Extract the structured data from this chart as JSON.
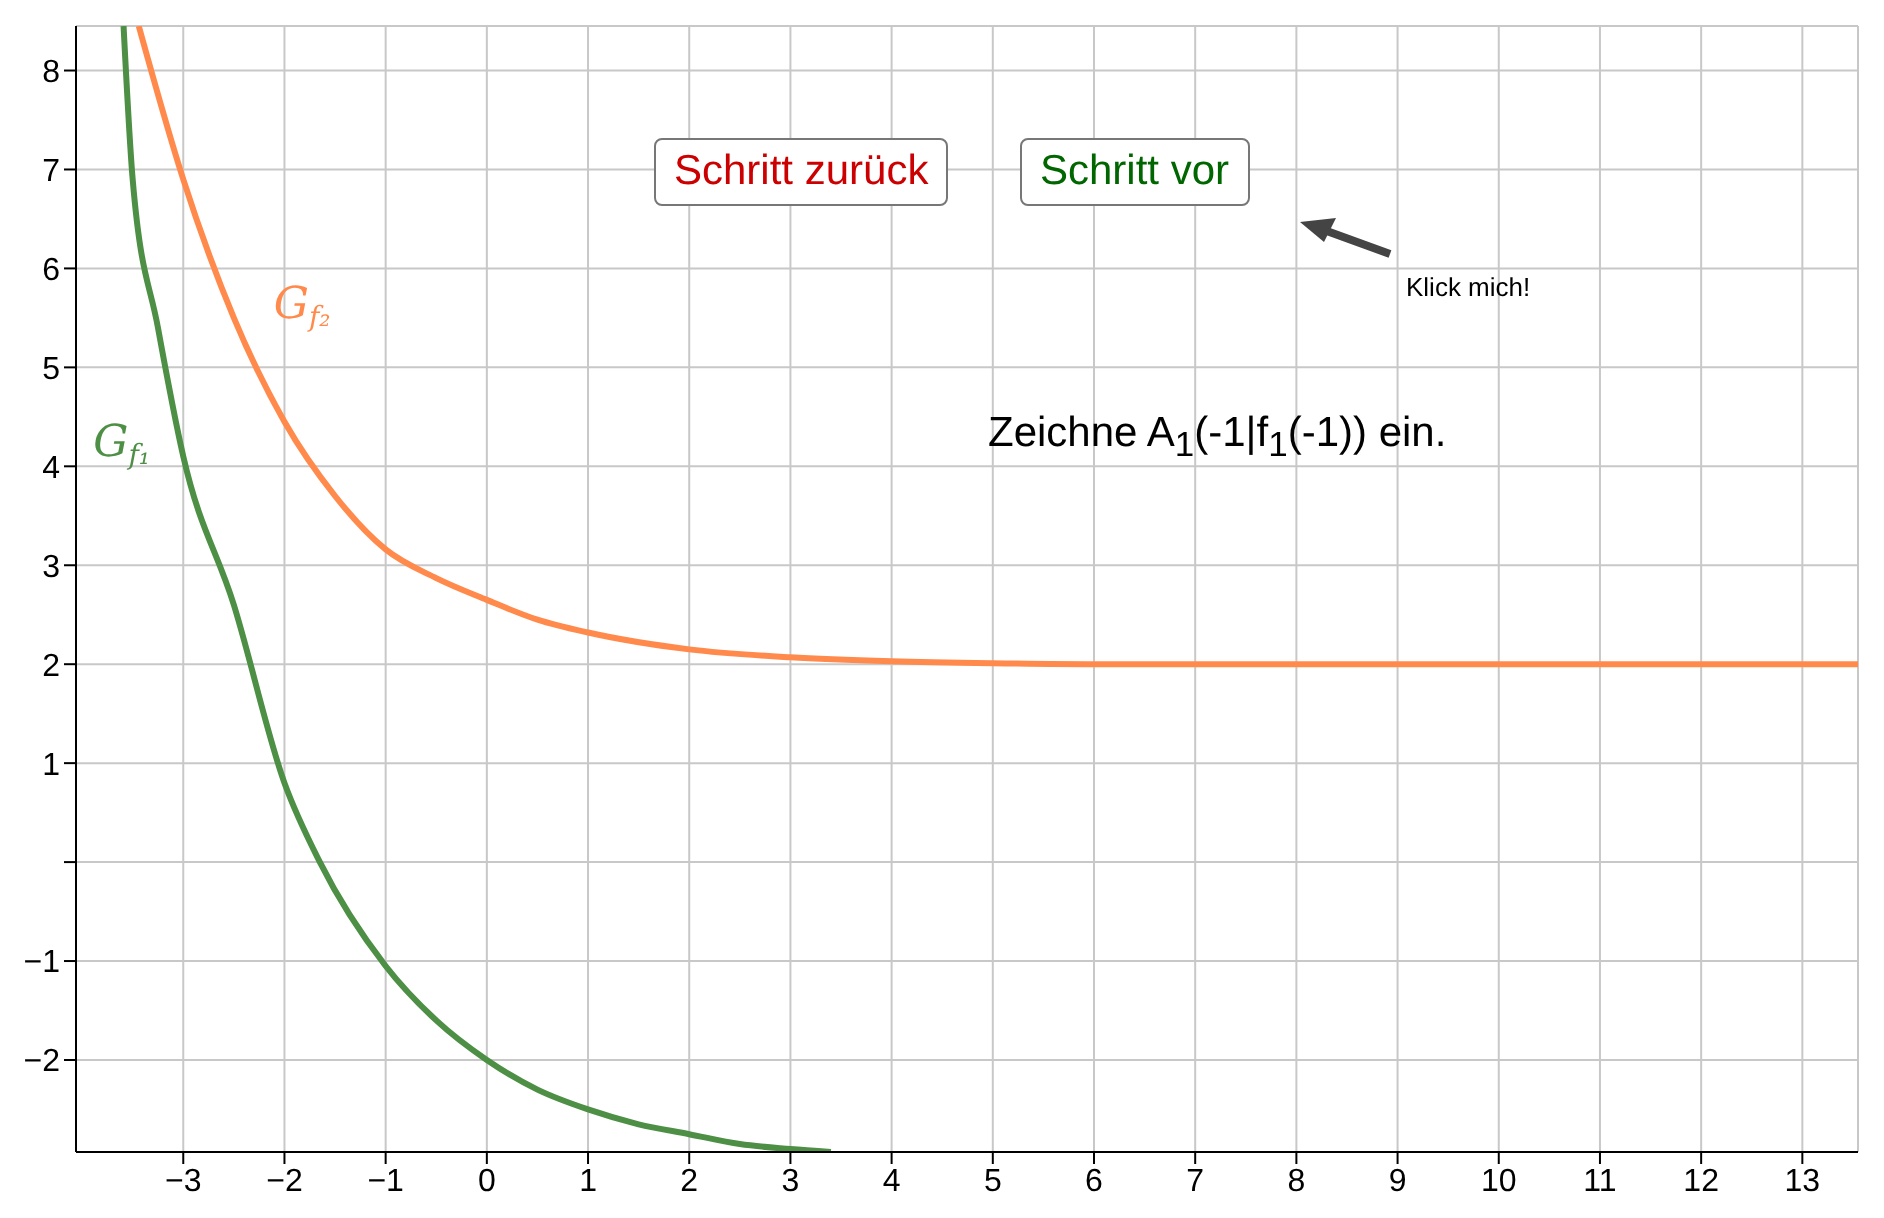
{
  "chart_data": {
    "type": "line",
    "xlim": [
      -4.06,
      13.55
    ],
    "ylim": [
      -2.93,
      8.45
    ],
    "xticks": [
      -3,
      -2,
      -1,
      0,
      1,
      2,
      3,
      4,
      5,
      6,
      7,
      8,
      9,
      10,
      11,
      12,
      13
    ],
    "yticks": [
      -2,
      -1,
      {
        "value": 0,
        "label": null
      },
      1,
      2,
      3,
      4,
      5,
      6,
      7,
      8
    ],
    "grid": true,
    "legend": false,
    "marker": "none",
    "line_style": "solid",
    "series": [
      {
        "name": "G$_{f₂}$",
        "color": "#ff8a4c",
        "x": [
          -3.44,
          -3,
          -2.5,
          -2,
          -1.5,
          -1,
          -0.5,
          0,
          0.5,
          1,
          2,
          3,
          4,
          5,
          6,
          8,
          10,
          13.55
        ],
        "values": [
          8.45,
          6.9,
          5.5,
          4.45,
          3.7,
          3.16,
          2.87,
          2.65,
          2.45,
          2.32,
          2.15,
          2.07,
          2.03,
          2.01,
          2,
          2,
          2,
          2
        ]
      },
      {
        "name": "G$_{f₁}$",
        "color": "#4e8f46",
        "x": [
          -3.59,
          -3.5,
          -3.25,
          -3,
          -2.5,
          -2,
          -1.65,
          -1,
          -0.5,
          0,
          0.5,
          1,
          1.5,
          2,
          2.5,
          3,
          3.4
        ],
        "values": [
          8.45,
          6.9,
          5.4,
          4.1,
          2.6,
          0.8,
          0,
          -1.05,
          -1.6,
          -2,
          -2.3,
          -2.5,
          -2.65,
          -2.75,
          -2.85,
          -2.9,
          -2.93
        ]
      }
    ],
    "annotations": [
      "Schritt zurück",
      "Schritt vor",
      "Klick mich!",
      "Zeichne A$_{1}$(-1|f$_{1}$(-1)) ein."
    ]
  }
}
